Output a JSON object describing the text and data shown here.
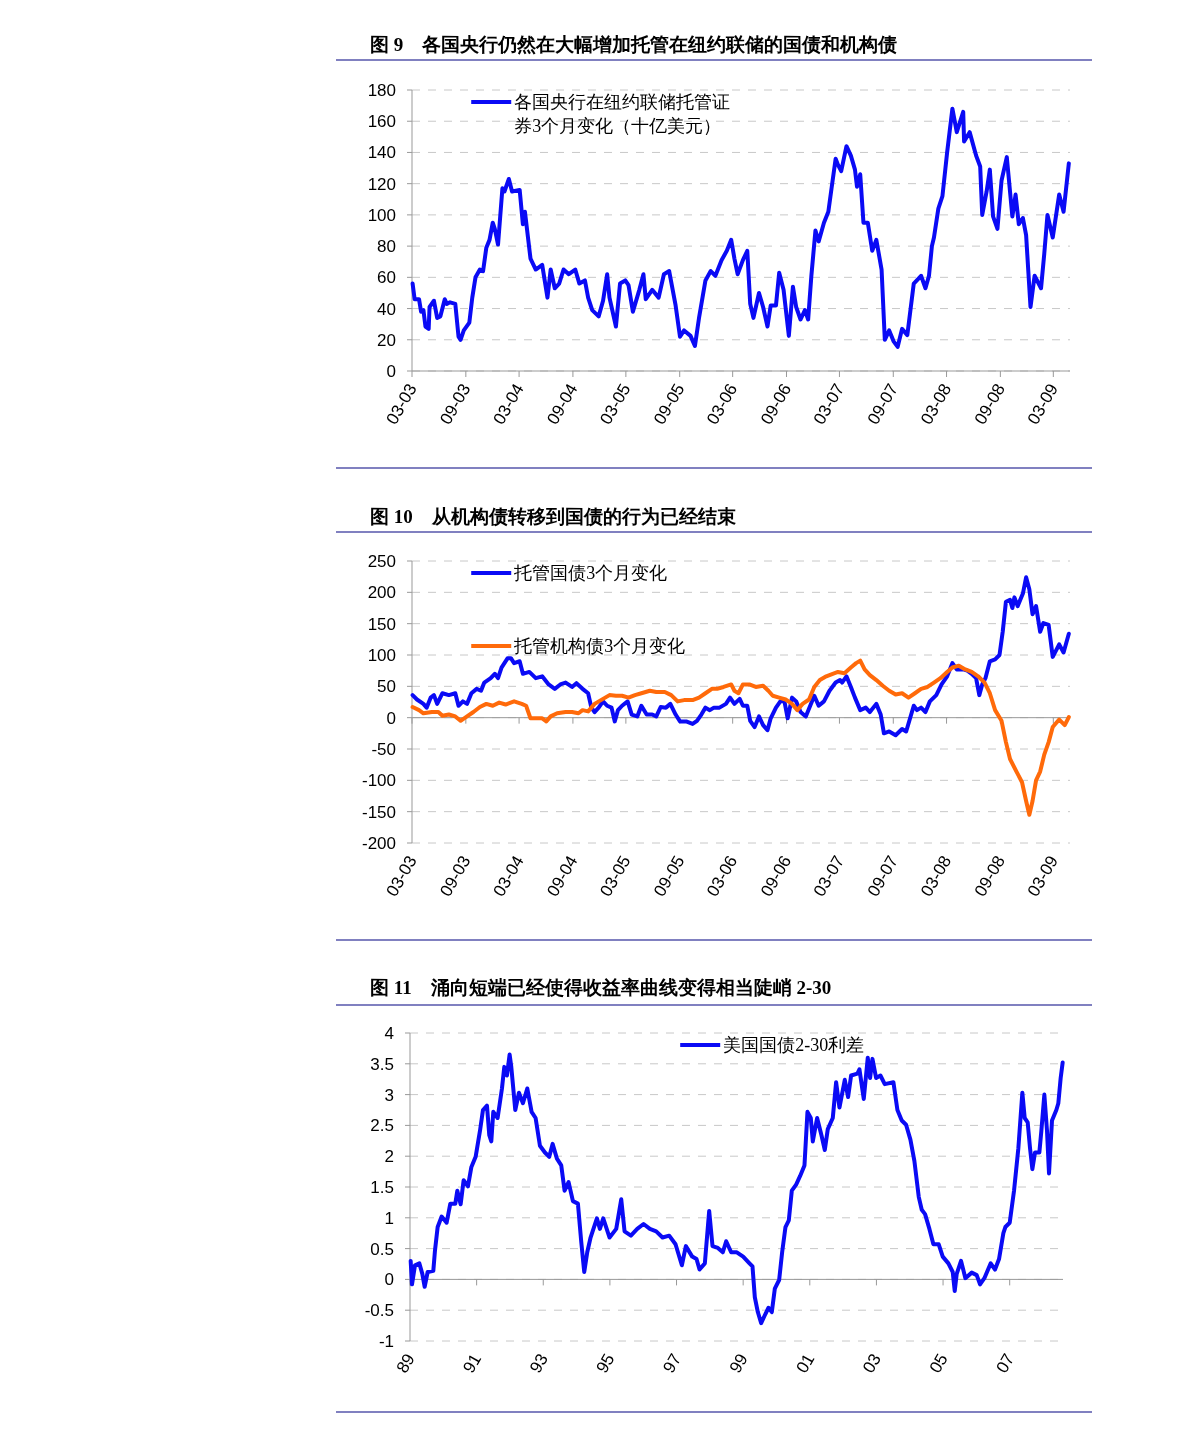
{
  "chart_data": [
    {
      "type": "line",
      "title": "图 9　各国央行仍然在大幅增加托管在纽约联储的国债和机构债",
      "legend": "top left",
      "grid": "y",
      "line_style": "solid",
      "marker": "none",
      "xlim": [
        "2003-03-01",
        "2009-04-27"
      ],
      "xticks": [
        {
          "value": "2003-03",
          "label": "03-03"
        },
        {
          "value": "2003-09",
          "label": "09-03"
        },
        {
          "value": "2004-03",
          "label": "03-04"
        },
        {
          "value": "2004-09",
          "label": "09-04"
        },
        {
          "value": "2005-03",
          "label": "03-05"
        },
        {
          "value": "2005-09",
          "label": "09-05"
        },
        {
          "value": "2006-03",
          "label": "03-06"
        },
        {
          "value": "2006-09",
          "label": "09-06"
        },
        {
          "value": "2007-03",
          "label": "03-07"
        },
        {
          "value": "2007-09",
          "label": "09-07"
        },
        {
          "value": "2008-03",
          "label": "03-08"
        },
        {
          "value": "2008-09",
          "label": "09-08"
        },
        {
          "value": "2009-03",
          "label": "03-09"
        }
      ],
      "ylim": [
        0,
        180
      ],
      "yticks": [
        0,
        20,
        40,
        60,
        80,
        100,
        120,
        140,
        160,
        180
      ],
      "series": [
        {
          "name": "各国央行在纽约联储托管证券3个月变化（十亿美元）",
          "color": "#0a0af5",
          "x": [
            "2003-03-03",
            "2003-03-10",
            "2003-03-25",
            "2003-04-01",
            "2003-04-09",
            "2003-04-16",
            "2003-04-27",
            "2003-04-30",
            "2003-05-15",
            "2003-05-26",
            "2003-06-06",
            "2003-06-21",
            "2003-06-28",
            "2003-07-09",
            "2003-07-27",
            "2003-08-07",
            "2003-08-14",
            "2003-08-25",
            "2003-09-13",
            "2003-09-23",
            "2003-10-04",
            "2003-10-19",
            "2003-10-30",
            "2003-11-10",
            "2003-11-21",
            "2003-12-02",
            "2003-12-09",
            "2003-12-20",
            "2004-01-04",
            "2004-01-11",
            "2004-01-26",
            "2004-02-06",
            "2004-03-03",
            "2004-03-14",
            "2004-03-21",
            "2004-04-09",
            "2004-04-27",
            "2004-05-19",
            "2004-06-06",
            "2004-06-17",
            "2004-07-01",
            "2004-07-16",
            "2004-07-31",
            "2004-08-18",
            "2004-09-09",
            "2004-09-23",
            "2004-10-12",
            "2004-10-23",
            "2004-11-06",
            "2004-11-28",
            "2004-12-13",
            "2004-12-27",
            "2005-01-04",
            "2005-01-26",
            "2005-02-09",
            "2005-02-27",
            "2005-03-10",
            "2005-03-25",
            "2005-04-16",
            "2005-04-30",
            "2005-05-08",
            "2005-05-30",
            "2005-06-21",
            "2005-07-09",
            "2005-07-27",
            "2005-08-18",
            "2005-09-02",
            "2005-09-16",
            "2005-10-08",
            "2005-10-23",
            "2005-11-06",
            "2005-11-28",
            "2005-12-16",
            "2006-01-01",
            "2006-01-22",
            "2006-02-09",
            "2006-02-24",
            "2006-03-07",
            "2006-03-18",
            "2006-04-05",
            "2006-04-20",
            "2006-04-30",
            "2006-05-11",
            "2006-05-30",
            "2006-06-13",
            "2006-06-28",
            "2006-07-09",
            "2006-07-27",
            "2006-08-07",
            "2006-08-22",
            "2006-09-09",
            "2006-09-23",
            "2006-10-04",
            "2006-10-19",
            "2006-11-03",
            "2006-11-14",
            "2006-11-25",
            "2006-12-09",
            "2006-12-20",
            "2007-01-07",
            "2007-01-22",
            "2007-02-02",
            "2007-02-16",
            "2007-02-24",
            "2007-03-07",
            "2007-03-25",
            "2007-04-09",
            "2007-04-23",
            "2007-04-30",
            "2007-05-11",
            "2007-05-22",
            "2007-06-06",
            "2007-06-21",
            "2007-07-05",
            "2007-07-23",
            "2007-08-03",
            "2007-08-18",
            "2007-09-02",
            "2007-09-16",
            "2007-10-01",
            "2007-10-19",
            "2007-11-10",
            "2007-12-05",
            "2007-12-20",
            "2008-01-01",
            "2008-01-11",
            "2008-01-18",
            "2008-02-02",
            "2008-02-16",
            "2008-03-03",
            "2008-03-21",
            "2008-04-05",
            "2008-04-27",
            "2008-04-30",
            "2008-05-19",
            "2008-06-10",
            "2008-06-24",
            "2008-07-01",
            "2008-07-16",
            "2008-07-27",
            "2008-08-07",
            "2008-08-22",
            "2008-09-05",
            "2008-09-23",
            "2008-10-12",
            "2008-10-23",
            "2008-11-03",
            "2008-11-17",
            "2008-11-28",
            "2008-12-13",
            "2008-12-27",
            "2009-01-18",
            "2009-01-29",
            "2009-02-09",
            "2009-02-27",
            "2009-03-21",
            "2009-04-05",
            "2009-04-23"
          ],
          "values": [
            56,
            46,
            46,
            38,
            39,
            28.5,
            27,
            41,
            45,
            34,
            35,
            46,
            43,
            44,
            43,
            22,
            20,
            26,
            31,
            47,
            60,
            65,
            64,
            79,
            84,
            95,
            91,
            81,
            117,
            115,
            123,
            115,
            116,
            94,
            102,
            72,
            65,
            68,
            47,
            65,
            53,
            56,
            65,
            62,
            65,
            56,
            58,
            47,
            39,
            35,
            45,
            62,
            47,
            28.5,
            56,
            58,
            55,
            38,
            52,
            62,
            46,
            52,
            47,
            62,
            64,
            42,
            22,
            26,
            22.5,
            16,
            34,
            58,
            64,
            61,
            71,
            77,
            84,
            72,
            62,
            71,
            77,
            43,
            34,
            50,
            41,
            28.5,
            42,
            42,
            63,
            52,
            22.5,
            54,
            41,
            33,
            39,
            33,
            61,
            90,
            83,
            95,
            102,
            117,
            136,
            132,
            128,
            144,
            138,
            129,
            118,
            126,
            95,
            95,
            77,
            84,
            65,
            20,
            26,
            19,
            15.5,
            27,
            23,
            56,
            61,
            53,
            61,
            80,
            85.5,
            104,
            112,
            140,
            168,
            153,
            166,
            147,
            153,
            138,
            131,
            100,
            115,
            129,
            99,
            91,
            122,
            137,
            99,
            113,
            94,
            98,
            87,
            41,
            61,
            53,
            75,
            100,
            85.5,
            113,
            102,
            133
          ]
        }
      ]
    },
    {
      "type": "line",
      "title": "图 10　从机构债转移到国债的行为已经结束",
      "legend": "top left",
      "grid": "y",
      "line_style": "solid",
      "marker": "none",
      "xlim": [
        "2003-03-01",
        "2009-04-27"
      ],
      "xticks": [
        {
          "value": "2003-03",
          "label": "03-03"
        },
        {
          "value": "2003-09",
          "label": "09-03"
        },
        {
          "value": "2004-03",
          "label": "03-04"
        },
        {
          "value": "2004-09",
          "label": "09-04"
        },
        {
          "value": "2005-03",
          "label": "03-05"
        },
        {
          "value": "2005-09",
          "label": "09-05"
        },
        {
          "value": "2006-03",
          "label": "03-06"
        },
        {
          "value": "2006-09",
          "label": "09-06"
        },
        {
          "value": "2007-03",
          "label": "03-07"
        },
        {
          "value": "2007-09",
          "label": "09-07"
        },
        {
          "value": "2008-03",
          "label": "03-08"
        },
        {
          "value": "2008-09",
          "label": "09-08"
        },
        {
          "value": "2009-03",
          "label": "03-09"
        }
      ],
      "ylim": [
        -200,
        250
      ],
      "yticks": [
        -200,
        -150,
        -100,
        -50,
        0,
        50,
        100,
        150,
        200,
        250
      ],
      "series": [
        {
          "name": "托管国债3个月变化",
          "color": "#0a0af5",
          "x": [
            "2003-03-03",
            "2003-03-18",
            "2003-04-09",
            "2003-04-20",
            "2003-05-04",
            "2003-05-15",
            "2003-05-26",
            "2003-06-13",
            "2003-07-05",
            "2003-07-27",
            "2003-08-07",
            "2003-08-22",
            "2003-09-05",
            "2003-09-20",
            "2003-10-08",
            "2003-10-23",
            "2003-11-03",
            "2003-11-25",
            "2003-12-09",
            "2003-12-20",
            "2004-01-01",
            "2004-01-22",
            "2004-02-02",
            "2004-02-13",
            "2004-03-03",
            "2004-03-14",
            "2004-04-05",
            "2004-04-27",
            "2004-05-19",
            "2004-06-10",
            "2004-07-01",
            "2004-07-20",
            "2004-08-07",
            "2004-08-29",
            "2004-09-13",
            "2004-10-04",
            "2004-10-23",
            "2004-11-03",
            "2004-11-14",
            "2004-11-28",
            "2004-12-13",
            "2004-12-27",
            "2005-01-11",
            "2005-01-22",
            "2005-02-02",
            "2005-02-16",
            "2005-03-07",
            "2005-03-21",
            "2005-04-09",
            "2005-04-23",
            "2005-05-11",
            "2005-05-30",
            "2005-06-13",
            "2005-06-28",
            "2005-07-16",
            "2005-07-31",
            "2005-08-18",
            "2005-09-02",
            "2005-09-23",
            "2005-10-15",
            "2005-10-30",
            "2005-11-14",
            "2005-11-28",
            "2005-12-13",
            "2005-12-27",
            "2006-01-15",
            "2006-02-06",
            "2006-02-20",
            "2006-03-07",
            "2006-03-25",
            "2006-04-05",
            "2006-04-20",
            "2006-04-30",
            "2006-05-15",
            "2006-05-30",
            "2006-06-13",
            "2006-06-28",
            "2006-07-09",
            "2006-07-27",
            "2006-08-11",
            "2006-08-25",
            "2006-09-05",
            "2006-09-20",
            "2006-10-04",
            "2006-10-19",
            "2006-11-06",
            "2006-11-21",
            "2006-12-05",
            "2006-12-20",
            "2007-01-07",
            "2007-01-26",
            "2007-02-16",
            "2007-03-03",
            "2007-03-10",
            "2007-03-25",
            "2007-04-09",
            "2007-04-23",
            "2007-05-11",
            "2007-05-30",
            "2007-06-13",
            "2007-07-05",
            "2007-07-20",
            "2007-07-31",
            "2007-08-18",
            "2007-09-09",
            "2007-10-01",
            "2007-10-15",
            "2007-11-10",
            "2007-11-21",
            "2007-12-05",
            "2007-12-20",
            "2008-01-04",
            "2008-01-26",
            "2008-02-13",
            "2008-03-03",
            "2008-03-21",
            "2008-04-05",
            "2008-04-27",
            "2008-05-11",
            "2008-05-26",
            "2008-06-10",
            "2008-06-21",
            "2008-07-01",
            "2008-07-12",
            "2008-07-27",
            "2008-08-14",
            "2008-08-29",
            "2008-09-09",
            "2008-09-20",
            "2008-10-04",
            "2008-10-12",
            "2008-10-19",
            "2008-10-30",
            "2008-11-17",
            "2008-11-28",
            "2008-12-09",
            "2008-12-20",
            "2009-01-01",
            "2009-01-15",
            "2009-01-26",
            "2009-02-13",
            "2009-02-27",
            "2009-03-21",
            "2009-04-05",
            "2009-04-23"
          ],
          "values": [
            36,
            29,
            22,
            16,
            32,
            36,
            22,
            39,
            36,
            39,
            19,
            26,
            22,
            39,
            46,
            43,
            56,
            63,
            70,
            63,
            80,
            95,
            95,
            87,
            90,
            70,
            73,
            63,
            66,
            53,
            46,
            53,
            56,
            49,
            55,
            46,
            39,
            16,
            9,
            16,
            26,
            19,
            16,
            -6,
            12,
            19,
            26,
            5,
            2,
            19,
            5,
            5,
            2,
            17,
            16,
            22,
            5,
            -6,
            -6,
            -10,
            -5,
            5,
            16,
            12,
            16,
            16,
            22,
            32,
            22,
            30,
            19,
            19,
            -5,
            -15,
            2,
            -12,
            -20,
            -1,
            16,
            26,
            26,
            -1,
            32,
            26,
            9,
            2,
            19,
            35,
            19,
            26,
            43,
            56,
            60,
            56,
            66,
            49,
            32,
            12,
            16,
            9,
            22,
            5,
            -25,
            -22,
            -28,
            -18,
            -22,
            19,
            12,
            16,
            9,
            26,
            36,
            53,
            66,
            87,
            77,
            77,
            75,
            70,
            63,
            36,
            53,
            63,
            90,
            93,
            100,
            137,
            185,
            188,
            175,
            192,
            178,
            198,
            224,
            205,
            165,
            178,
            137,
            151,
            148,
            97,
            117,
            104,
            134
          ]
        },
        {
          "name": "托管机构债3个月变化",
          "color": "#ff6a0a",
          "x": [
            "2003-03-03",
            "2003-03-25",
            "2003-04-09",
            "2003-05-08",
            "2003-05-30",
            "2003-06-13",
            "2003-07-05",
            "2003-07-27",
            "2003-08-14",
            "2003-09-05",
            "2003-09-27",
            "2003-10-19",
            "2003-11-10",
            "2003-12-02",
            "2003-12-24",
            "2004-01-15",
            "2004-02-13",
            "2004-03-10",
            "2004-03-25",
            "2004-04-09",
            "2004-04-27",
            "2004-05-19",
            "2004-06-02",
            "2004-06-17",
            "2004-07-09",
            "2004-08-07",
            "2004-08-29",
            "2004-09-20",
            "2004-10-04",
            "2004-10-23",
            "2004-11-14",
            "2004-12-13",
            "2005-01-04",
            "2005-01-26",
            "2005-02-16",
            "2005-03-10",
            "2005-04-01",
            "2005-04-23",
            "2005-05-22",
            "2005-06-13",
            "2005-07-12",
            "2005-08-03",
            "2005-08-25",
            "2005-09-16",
            "2005-10-15",
            "2005-11-06",
            "2005-11-28",
            "2005-12-20",
            "2006-01-07",
            "2006-01-29",
            "2006-02-24",
            "2006-03-07",
            "2006-03-21",
            "2006-04-05",
            "2006-04-27",
            "2006-05-19",
            "2006-06-13",
            "2006-07-01",
            "2006-07-16",
            "2006-08-07",
            "2006-08-29",
            "2006-09-20",
            "2006-10-08",
            "2006-10-26",
            "2006-11-17",
            "2006-12-05",
            "2006-12-24",
            "2007-01-15",
            "2007-02-06",
            "2007-02-24",
            "2007-03-18",
            "2007-04-09",
            "2007-04-27",
            "2007-05-11",
            "2007-05-26",
            "2007-06-13",
            "2007-07-05",
            "2007-07-27",
            "2007-08-18",
            "2007-09-09",
            "2007-10-01",
            "2007-10-23",
            "2007-11-14",
            "2007-12-05",
            "2007-12-27",
            "2008-01-18",
            "2008-02-09",
            "2008-03-03",
            "2008-03-21",
            "2008-04-12",
            "2008-05-04",
            "2008-05-26",
            "2008-06-17",
            "2008-07-09",
            "2008-07-27",
            "2008-08-14",
            "2008-09-05",
            "2008-09-20",
            "2008-10-04",
            "2008-10-26",
            "2008-11-14",
            "2008-11-28",
            "2008-12-09",
            "2008-12-20",
            "2009-01-01",
            "2009-01-15",
            "2009-01-29",
            "2009-02-13",
            "2009-02-27",
            "2009-03-21",
            "2009-04-09",
            "2009-04-23"
          ],
          "values": [
            17,
            12,
            7,
            9,
            9,
            3,
            5,
            2,
            -5,
            2,
            9,
            17,
            22,
            19,
            24,
            21,
            26,
            22,
            19,
            -1,
            -1,
            -1,
            -6,
            2,
            7,
            9,
            9,
            7,
            12,
            10,
            22,
            30,
            36,
            35,
            35,
            32,
            36,
            39,
            43,
            41,
            41,
            36,
            26,
            28,
            28,
            32,
            39,
            46,
            46,
            49,
            53,
            43,
            39,
            53,
            53,
            49,
            51,
            43,
            35,
            32,
            29,
            22,
            12,
            22,
            29,
            49,
            60,
            66,
            70,
            73,
            71,
            80,
            87,
            91,
            77,
            68,
            60,
            51,
            43,
            37,
            39,
            32,
            39,
            46,
            49,
            56,
            63,
            73,
            80,
            83,
            77,
            73,
            66,
            56,
            39,
            12,
            -5,
            -39,
            -66,
            -86,
            -103,
            -133,
            -155,
            -133,
            -100,
            -86,
            -59,
            -39,
            -15,
            -3,
            -12,
            1
          ]
        }
      ]
    },
    {
      "type": "line",
      "title": "图 11　涌向短端已经使得收益率曲线变得相当陡峭 2-30",
      "legend": "top",
      "grid": "y",
      "line_style": "solid",
      "marker": "none",
      "xlim": [
        1989,
        2008.6
      ],
      "xticks": [
        {
          "value": 1989,
          "label": "89"
        },
        {
          "value": 1991,
          "label": "91"
        },
        {
          "value": 1993,
          "label": "93"
        },
        {
          "value": 1995,
          "label": "95"
        },
        {
          "value": 1997,
          "label": "97"
        },
        {
          "value": 1999,
          "label": "99"
        },
        {
          "value": 2001,
          "label": "01"
        },
        {
          "value": 2003,
          "label": "03"
        },
        {
          "value": 2005,
          "label": "05"
        },
        {
          "value": 2007,
          "label": "07"
        }
      ],
      "ylim": [
        -1,
        4
      ],
      "yticks": [
        -1,
        -0.5,
        0,
        0.5,
        1,
        1.5,
        2,
        2.5,
        3,
        3.5,
        4
      ],
      "series": [
        {
          "name": "美国国债2-30利差",
          "color": "#0a0af5",
          "x": [
            1989.02,
            1989.06,
            1989.15,
            1989.28,
            1989.37,
            1989.44,
            1989.53,
            1989.7,
            1989.75,
            1989.83,
            1989.95,
            1990.1,
            1990.21,
            1990.36,
            1990.42,
            1990.52,
            1990.61,
            1990.74,
            1990.84,
            1990.97,
            1991.1,
            1991.19,
            1991.31,
            1991.38,
            1991.44,
            1991.5,
            1991.63,
            1991.76,
            1991.83,
            1991.91,
            1991.99,
            1992.04,
            1992.16,
            1992.27,
            1992.39,
            1992.52,
            1992.65,
            1992.77,
            1992.9,
            1993.05,
            1993.18,
            1993.28,
            1993.41,
            1993.54,
            1993.64,
            1993.76,
            1993.89,
            1994.04,
            1994.14,
            1994.23,
            1994.32,
            1994.42,
            1994.61,
            1994.7,
            1994.8,
            1994.99,
            1995.19,
            1995.34,
            1995.44,
            1995.63,
            1995.82,
            1996.01,
            1996.2,
            1996.39,
            1996.58,
            1996.78,
            1996.97,
            1997.16,
            1997.28,
            1997.47,
            1997.6,
            1997.69,
            1997.85,
            1997.98,
            1998.08,
            1998.24,
            1998.39,
            1998.49,
            1998.64,
            1998.81,
            1999.0,
            1999.19,
            1999.28,
            1999.35,
            1999.44,
            1999.54,
            1999.66,
            1999.76,
            1999.86,
            1999.95,
            2000.08,
            2000.17,
            2000.27,
            2000.37,
            2000.46,
            2000.59,
            2000.71,
            2000.84,
            2000.93,
            2001.03,
            2001.09,
            2001.22,
            2001.35,
            2001.45,
            2001.54,
            2001.69,
            2001.79,
            2001.89,
            2002.05,
            2002.15,
            2002.24,
            2002.43,
            2002.49,
            2002.62,
            2002.74,
            2002.81,
            2002.88,
            2002.99,
            2003.12,
            2003.25,
            2003.51,
            2003.63,
            2003.76,
            2003.89,
            2004.02,
            2004.14,
            2004.27,
            2004.36,
            2004.46,
            2004.59,
            2004.71,
            2004.87,
            2004.99,
            2005.16,
            2005.29,
            2005.35,
            2005.41,
            2005.54,
            2005.67,
            2005.86,
            2006.01,
            2006.11,
            2006.24,
            2006.43,
            2006.56,
            2006.68,
            2006.81,
            2006.87,
            2007.0,
            2007.13,
            2007.26,
            2007.38,
            2007.45,
            2007.54,
            2007.61,
            2007.68,
            2007.76,
            2007.89,
            2007.95,
            2008.04,
            2008.12,
            2008.18,
            2008.27,
            2008.4,
            2008.46,
            2008.53,
            2008.59
          ],
          "values": [
            0.3,
            -0.08,
            0.23,
            0.26,
            0.09,
            -0.12,
            0.12,
            0.14,
            0.47,
            0.85,
            1.02,
            0.92,
            1.23,
            1.23,
            1.44,
            1.22,
            1.61,
            1.51,
            1.82,
            1.99,
            2.41,
            2.75,
            2.82,
            2.34,
            2.24,
            2.72,
            2.62,
            3.1,
            3.45,
            3.31,
            3.65,
            3.45,
            2.75,
            3.03,
            2.86,
            3.1,
            2.72,
            2.62,
            2.17,
            2.06,
            1.99,
            2.2,
            1.96,
            1.85,
            1.44,
            1.58,
            1.27,
            1.23,
            0.61,
            0.12,
            0.44,
            0.68,
            0.99,
            0.82,
            0.99,
            0.68,
            0.82,
            1.3,
            0.78,
            0.71,
            0.82,
            0.9,
            0.82,
            0.78,
            0.68,
            0.71,
            0.57,
            0.23,
            0.54,
            0.37,
            0.33,
            0.16,
            0.26,
            1.11,
            0.54,
            0.51,
            0.44,
            0.62,
            0.44,
            0.44,
            0.37,
            0.26,
            0.21,
            -0.29,
            -0.53,
            -0.71,
            -0.57,
            -0.46,
            -0.53,
            -0.15,
            -0.01,
            0.44,
            0.85,
            0.96,
            1.44,
            1.54,
            1.68,
            1.85,
            2.72,
            2.62,
            2.24,
            2.62,
            2.34,
            2.1,
            2.44,
            2.62,
            3.2,
            2.79,
            3.24,
            2.96,
            3.31,
            3.34,
            3.41,
            2.93,
            3.6,
            3.27,
            3.58,
            3.27,
            3.31,
            3.17,
            3.2,
            2.75,
            2.58,
            2.51,
            2.27,
            1.92,
            1.34,
            1.13,
            1.06,
            0.82,
            0.57,
            0.57,
            0.37,
            0.26,
            0.12,
            -0.19,
            0.09,
            0.3,
            0.02,
            0.11,
            0.07,
            -0.08,
            0.02,
            0.26,
            0.16,
            0.33,
            0.75,
            0.85,
            0.92,
            1.44,
            2.13,
            3.03,
            2.62,
            2.55,
            2.13,
            1.79,
            2.06,
            2.06,
            2.41,
            3.0,
            2.41,
            1.72,
            2.58,
            2.75,
            2.86,
            3.27,
            3.52
          ]
        }
      ]
    }
  ]
}
